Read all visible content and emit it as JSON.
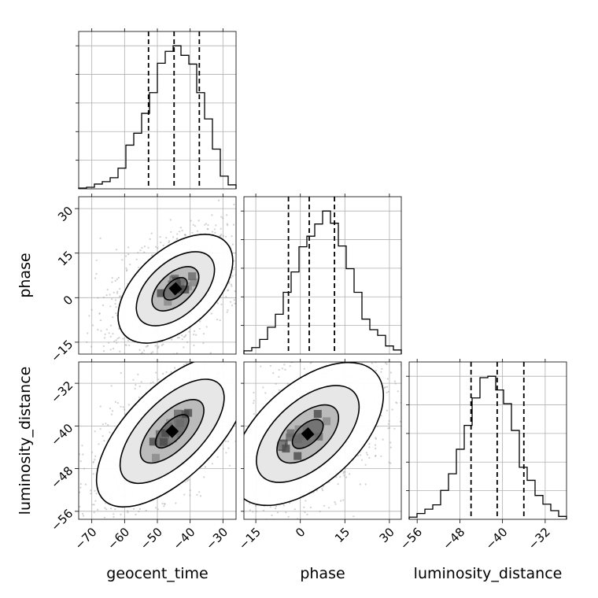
{
  "chart_data": {
    "type": "corner",
    "parameters": [
      "geocent_time",
      "phase",
      "luminosity_distance"
    ],
    "axis_labels": {
      "geocent_time": "geocent_time",
      "phase": "phase",
      "luminosity_distance": "luminosity_distance"
    },
    "ranges": {
      "geocent_time": [
        -74,
        -26
      ],
      "phase": [
        -19,
        34
      ],
      "luminosity_distance": [
        -57.5,
        -28
      ]
    },
    "ticks": {
      "geocent_time": [
        -70,
        -60,
        -50,
        -40,
        -30
      ],
      "phase": [
        -15,
        0,
        15,
        30
      ],
      "luminosity_distance": [
        -56,
        -48,
        -40,
        -32
      ]
    },
    "quantiles": {
      "geocent_time": [
        -52.7,
        -44.9,
        -37.2
      ],
      "phase": [
        -4.0,
        3.0,
        11.5
      ],
      "luminosity_distance": [
        -45.9,
        -41.0,
        -36.0
      ]
    },
    "histograms": {
      "geocent_time": {
        "edges_start": -74,
        "bin_width": 2.4,
        "counts": [
          1,
          2,
          6,
          9,
          14,
          26,
          55,
          70,
          95,
          121,
          158,
          173,
          180,
          168,
          157,
          121,
          88,
          50,
          16,
          5
        ]
      },
      "phase": {
        "edges_start": -19,
        "bin_width": 2.65,
        "counts": [
          4,
          8,
          18,
          33,
          49,
          76,
          101,
          132,
          145,
          160,
          176,
          161,
          133,
          105,
          76,
          43,
          30,
          23,
          10,
          5
        ]
      },
      "luminosity_distance": {
        "edges_start": -57.5,
        "bin_width": 1.475,
        "counts": [
          3,
          8,
          14,
          20,
          40,
          63,
          97,
          130,
          168,
          196,
          198,
          179,
          160,
          123,
          72,
          54,
          33,
          21,
          12,
          4
        ]
      }
    },
    "pairs": [
      {
        "x": "geocent_time",
        "y": "phase",
        "center": [
          -44.5,
          3.0
        ],
        "rotation_deg": 42,
        "levels": [
          {
            "a": 4.5,
            "b": 2.6,
            "rel": 0.12
          },
          {
            "a": 9.0,
            "b": 5.0,
            "rel": 0.39
          },
          {
            "a": 15.0,
            "b": 8.5,
            "rel": 0.68
          },
          {
            "a": 22.0,
            "b": 12.5,
            "rel": 0.86
          }
        ]
      },
      {
        "x": "geocent_time",
        "y": "luminosity_distance",
        "center": [
          -45.5,
          -41.0
        ],
        "rotation_deg": 45,
        "levels": [
          {
            "a": 5.0,
            "b": 2.2,
            "rel": 0.12
          },
          {
            "a": 9.5,
            "b": 4.3,
            "rel": 0.39
          },
          {
            "a": 15.5,
            "b": 7.2,
            "rel": 0.68
          },
          {
            "a": 22.5,
            "b": 10.5,
            "rel": 0.86
          }
        ]
      },
      {
        "x": "phase",
        "y": "luminosity_distance",
        "center": [
          2.5,
          -41.5
        ],
        "rotation_deg": 42,
        "levels": [
          {
            "a": 4.5,
            "b": 2.4,
            "rel": 0.12
          },
          {
            "a": 9.0,
            "b": 4.8,
            "rel": 0.39
          },
          {
            "a": 15.0,
            "b": 8.0,
            "rel": 0.68
          },
          {
            "a": 22.0,
            "b": 12.0,
            "rel": 0.86
          }
        ]
      }
    ],
    "grid": true
  }
}
